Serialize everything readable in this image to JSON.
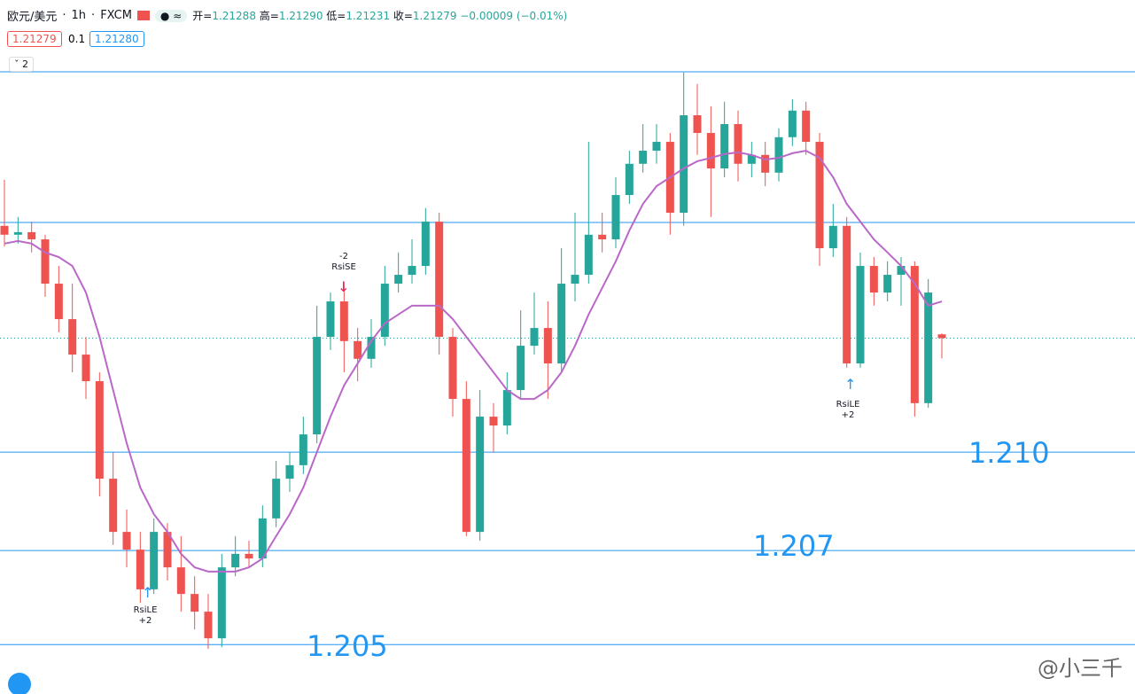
{
  "header": {
    "symbol": "欧元/美元",
    "interval": "1h",
    "source": "FXCM",
    "ohlc": [
      {
        "label": "开=",
        "value": "1.21288"
      },
      {
        "label": "高=",
        "value": "1.21290"
      },
      {
        "label": "低=",
        "value": "1.21231"
      },
      {
        "label": "收=",
        "value": "1.21279"
      }
    ],
    "change": "−0.00009 (−0.01%)",
    "bid": "1.21279",
    "spread": "0.1",
    "ask": "1.21280",
    "indicators": "2"
  },
  "annotations": [
    "1.210",
    "1.207",
    "1.205"
  ],
  "signals": [
    {
      "name": "RsiLE",
      "qty": "+2"
    },
    {
      "name": "RsiSE",
      "qty": "-2"
    },
    {
      "name": "RsiLE",
      "qty": "+2"
    }
  ],
  "watermark": "@小三千",
  "chart_data": {
    "type": "candlestick",
    "up_color": "#26a69a",
    "down_color": "#ef5350",
    "ylim": [
      1.20436,
      1.2208
    ],
    "open": [
      1.21545,
      1.21524,
      1.2153,
      1.21513,
      1.21408,
      1.21324,
      1.2124,
      1.21177,
      1.20946,
      1.2082,
      1.20778,
      1.20684,
      1.2082,
      1.20736,
      1.20673,
      1.20631,
      1.20568,
      1.20736,
      1.20768,
      1.20757,
      1.20852,
      1.20946,
      1.20978,
      1.21051,
      1.21282,
      1.21366,
      1.21272,
      1.2123,
      1.21282,
      1.21408,
      1.21429,
      1.2145,
      1.21555,
      1.21282,
      1.21135,
      1.2082,
      1.21093,
      1.21072,
      1.21156,
      1.21261,
      1.21303,
      1.21219,
      1.21408,
      1.21429,
      1.21524,
      1.21513,
      1.21618,
      1.21692,
      1.21723,
      1.21744,
      1.21576,
      1.21807,
      1.21765,
      1.21681,
      1.21786,
      1.21692,
      1.21713,
      1.21671,
      1.21755,
      1.21818,
      1.21744,
      1.21492,
      1.21545,
      1.21219,
      1.2145,
      1.21387,
      1.21429,
      1.2145,
      1.21125,
      1.21288
    ],
    "high": [
      1.21654,
      1.21566,
      1.21555,
      1.21524,
      1.2145,
      1.21408,
      1.21282,
      1.21198,
      1.21009,
      1.20873,
      1.2082,
      1.20852,
      1.20841,
      1.2081,
      1.20715,
      1.20673,
      1.20768,
      1.2081,
      1.20799,
      1.20883,
      1.20988,
      1.21009,
      1.21093,
      1.21356,
      1.21387,
      1.21412,
      1.21303,
      1.21324,
      1.2145,
      1.21482,
      1.21513,
      1.21587,
      1.21576,
      1.21303,
      1.21177,
      1.21156,
      1.21125,
      1.21198,
      1.21345,
      1.21387,
      1.21366,
      1.21492,
      1.21576,
      1.21744,
      1.21576,
      1.2166,
      1.21723,
      1.21786,
      1.21786,
      1.21765,
      1.21908,
      1.21881,
      1.21828,
      1.21839,
      1.21818,
      1.21744,
      1.21744,
      1.21776,
      1.21845,
      1.21839,
      1.21765,
      1.21597,
      1.21566,
      1.21482,
      1.21471,
      1.21461,
      1.21471,
      1.21461,
      1.21419,
      1.2129
    ],
    "low": [
      1.21496,
      1.21503,
      1.21482,
      1.21377,
      1.21293,
      1.21198,
      1.21135,
      1.20904,
      1.20789,
      1.20736,
      1.20652,
      1.20673,
      1.20705,
      1.20631,
      1.20589,
      1.20543,
      1.20547,
      1.20715,
      1.20736,
      1.20736,
      1.20831,
      1.20915,
      1.20957,
      1.2103,
      1.21251,
      1.21198,
      1.21177,
      1.21209,
      1.21261,
      1.21387,
      1.21408,
      1.21429,
      1.2124,
      1.21093,
      1.2081,
      1.20799,
      1.21009,
      1.21051,
      1.21135,
      1.2124,
      1.21135,
      1.21198,
      1.21366,
      1.21408,
      1.21482,
      1.21492,
      1.21597,
      1.21671,
      1.21692,
      1.21524,
      1.21545,
      1.21713,
      1.21566,
      1.2166,
      1.2165,
      1.2166,
      1.21639,
      1.2165,
      1.21734,
      1.21713,
      1.2145,
      1.21471,
      1.21209,
      1.21209,
      1.21356,
      1.21366,
      1.21356,
      1.21093,
      1.21114,
      1.21231
    ],
    "close": [
      1.21524,
      1.2153,
      1.21513,
      1.21408,
      1.21324,
      1.2124,
      1.21177,
      1.20946,
      1.2082,
      1.20778,
      1.20684,
      1.2082,
      1.20736,
      1.20673,
      1.20631,
      1.20568,
      1.20736,
      1.20768,
      1.20757,
      1.20852,
      1.20946,
      1.20978,
      1.21051,
      1.21282,
      1.21366,
      1.21272,
      1.2123,
      1.21282,
      1.21408,
      1.21429,
      1.2145,
      1.21555,
      1.21282,
      1.21135,
      1.2082,
      1.21093,
      1.21072,
      1.21156,
      1.21261,
      1.21303,
      1.21219,
      1.21408,
      1.21429,
      1.21524,
      1.21513,
      1.21618,
      1.21692,
      1.21723,
      1.21744,
      1.21576,
      1.21807,
      1.21765,
      1.21681,
      1.21786,
      1.21692,
      1.21713,
      1.21671,
      1.21755,
      1.21818,
      1.21744,
      1.21492,
      1.21545,
      1.21219,
      1.2145,
      1.21387,
      1.21429,
      1.2145,
      1.21125,
      1.21387,
      1.21279
    ],
    "overlay": {
      "color": "#ba68c8",
      "values": [
        1.21503,
        1.21509,
        1.21503,
        1.21482,
        1.21471,
        1.2145,
        1.21387,
        1.21282,
        1.21156,
        1.2103,
        1.20925,
        1.20862,
        1.2082,
        1.20768,
        1.20736,
        1.20726,
        1.20726,
        1.20726,
        1.20736,
        1.20757,
        1.2081,
        1.20862,
        1.20925,
        1.21009,
        1.21093,
        1.21167,
        1.21219,
        1.21272,
        1.21314,
        1.21335,
        1.21356,
        1.21356,
        1.21356,
        1.21324,
        1.21282,
        1.2124,
        1.21198,
        1.21156,
        1.21135,
        1.21135,
        1.21156,
        1.21198,
        1.21261,
        1.21335,
        1.21398,
        1.21461,
        1.21534,
        1.21597,
        1.21639,
        1.2166,
        1.21681,
        1.21698,
        1.21706,
        1.21715,
        1.21719,
        1.21713,
        1.21702,
        1.21706,
        1.21717,
        1.21723,
        1.21706,
        1.2166,
        1.21597,
        1.21555,
        1.21513,
        1.21482,
        1.2145,
        1.21408,
        1.21356,
        1.21366
      ]
    },
    "levels": [
      1.2191,
      1.21553,
      1.21009,
      1.20776,
      1.20553
    ],
    "level_color": "#2196f3"
  }
}
